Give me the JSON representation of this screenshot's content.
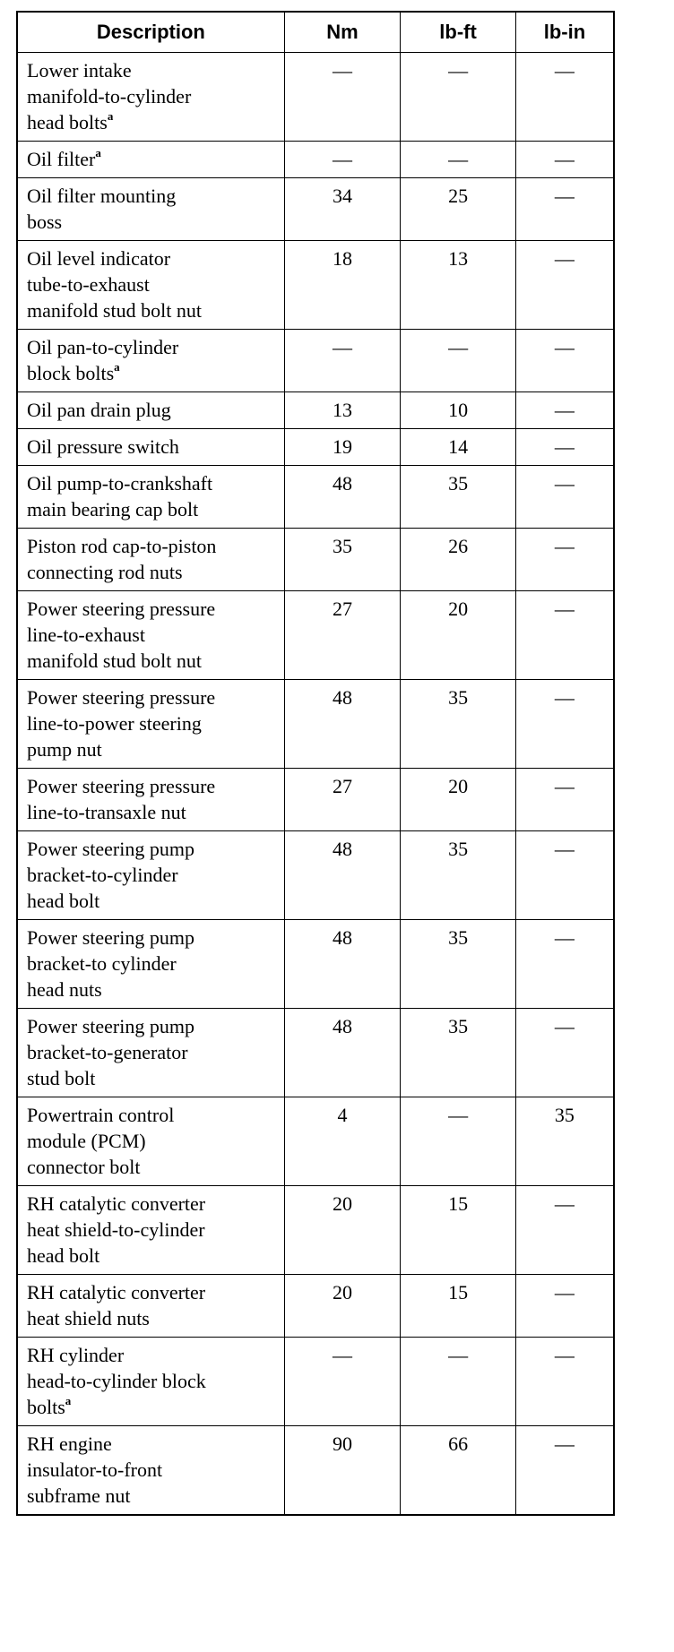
{
  "headers": [
    "Description",
    "Nm",
    "lb-ft",
    "lb-in"
  ],
  "rows": [
    {
      "description": "Lower intake\nmanifold-to-cylinder\nhead bolts",
      "note": "a",
      "nm": "—",
      "lbft": "—",
      "lbin": "—"
    },
    {
      "description": "Oil filter",
      "note": "a",
      "nm": "—",
      "lbft": "—",
      "lbin": "—"
    },
    {
      "description": "Oil filter mounting\nboss",
      "note": "",
      "nm": "34",
      "lbft": "25",
      "lbin": "—"
    },
    {
      "description": "Oil level indicator\ntube-to-exhaust\nmanifold stud bolt nut",
      "note": "",
      "nm": "18",
      "lbft": "13",
      "lbin": "—"
    },
    {
      "description": "Oil pan-to-cylinder\nblock bolts",
      "note": "a",
      "nm": "—",
      "lbft": "—",
      "lbin": "—"
    },
    {
      "description": "Oil pan drain plug",
      "note": "",
      "nm": "13",
      "lbft": "10",
      "lbin": "—"
    },
    {
      "description": "Oil pressure switch",
      "note": "",
      "nm": "19",
      "lbft": "14",
      "lbin": "—"
    },
    {
      "description": "Oil pump-to-crankshaft\nmain bearing cap bolt",
      "note": "",
      "nm": "48",
      "lbft": "35",
      "lbin": "—"
    },
    {
      "description": "Piston rod cap-to-piston\nconnecting rod nuts",
      "note": "",
      "nm": "35",
      "lbft": "26",
      "lbin": "—"
    },
    {
      "description": "Power steering pressure\nline-to-exhaust\nmanifold stud bolt nut",
      "note": "",
      "nm": "27",
      "lbft": "20",
      "lbin": "—"
    },
    {
      "description": "Power steering pressure\nline-to-power steering\npump nut",
      "note": "",
      "nm": "48",
      "lbft": "35",
      "lbin": "—"
    },
    {
      "description": "Power steering pressure\nline-to-transaxle nut",
      "note": "",
      "nm": "27",
      "lbft": "20",
      "lbin": "—"
    },
    {
      "description": "Power steering pump\nbracket-to-cylinder\nhead bolt",
      "note": "",
      "nm": "48",
      "lbft": "35",
      "lbin": "—"
    },
    {
      "description": "Power steering pump\nbracket-to cylinder\nhead nuts",
      "note": "",
      "nm": "48",
      "lbft": "35",
      "lbin": "—"
    },
    {
      "description": "Power steering pump\nbracket-to-generator\nstud bolt",
      "note": "",
      "nm": "48",
      "lbft": "35",
      "lbin": "—"
    },
    {
      "description": "Powertrain control\nmodule (PCM)\nconnector bolt",
      "note": "",
      "nm": "4",
      "lbft": "—",
      "lbin": "35"
    },
    {
      "description": "RH catalytic converter\nheat shield-to-cylinder\nhead bolt",
      "note": "",
      "nm": "20",
      "lbft": "15",
      "lbin": "—"
    },
    {
      "description": "RH catalytic converter\nheat shield nuts",
      "note": "",
      "nm": "20",
      "lbft": "15",
      "lbin": "—"
    },
    {
      "description": "RH cylinder\nhead-to-cylinder block\nbolts",
      "note": "a",
      "nm": "—",
      "lbft": "—",
      "lbin": "—"
    },
    {
      "description": "RH engine\ninsulator-to-front\nsubframe nut",
      "note": "",
      "nm": "90",
      "lbft": "66",
      "lbin": "—"
    }
  ]
}
